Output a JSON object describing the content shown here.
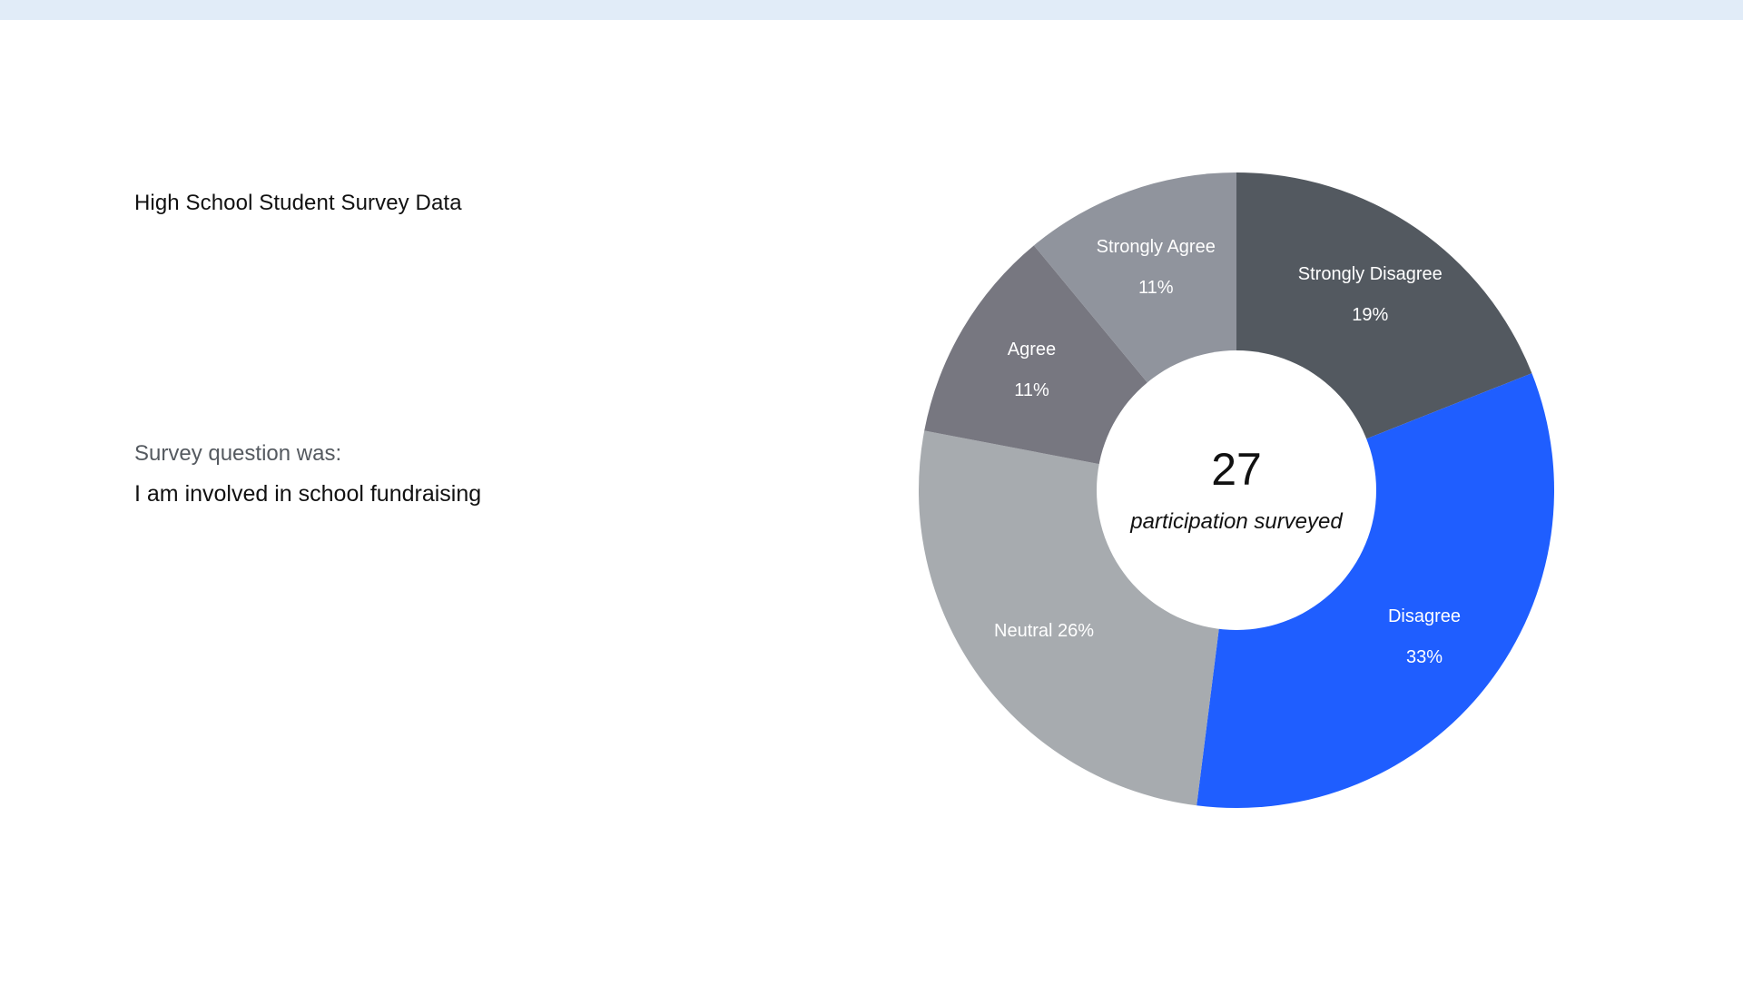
{
  "slide": {
    "title": "High School Student Survey Data",
    "question_label": "Survey question was:",
    "question_text": "I am involved in school fundraising"
  },
  "chart_data": {
    "type": "pie",
    "donut": true,
    "title": "",
    "center": {
      "value": "27",
      "label": "participation surveyed"
    },
    "categories": [
      "Strongly Disagree",
      "Disagree",
      "Neutral",
      "Agree",
      "Strongly Agree"
    ],
    "values": [
      19,
      33,
      26,
      11,
      11
    ],
    "value_labels": [
      "19%",
      "33%",
      "26%",
      "11%",
      "11%"
    ],
    "colors": [
      "#535960",
      "#1f5eff",
      "#a7abaf",
      "#777780",
      "#90949d"
    ],
    "slice_labels": [
      {
        "lines": [
          "Strongly Disagree",
          "19%"
        ]
      },
      {
        "lines": [
          "Disagree",
          "33%"
        ]
      },
      {
        "lines": [
          "Neutral 26%"
        ]
      },
      {
        "lines": [
          "Agree",
          "11%"
        ]
      },
      {
        "lines": [
          "Strongly Agree",
          "11%"
        ]
      }
    ],
    "legend": "none"
  }
}
